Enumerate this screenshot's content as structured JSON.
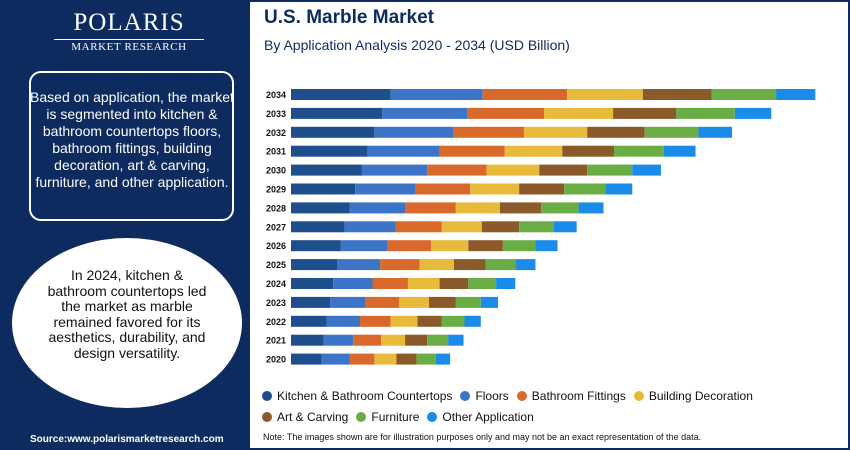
{
  "brand": {
    "name": "POLARIS",
    "tagline": "MARKET RESEARCH"
  },
  "title": "U.S. Marble Market",
  "subtitle": "By Application Analysis 2020 - 2034 (USD Billion)",
  "info_text": "Based on application, the market is segmented into kitchen & bathroom countertops floors, bathroom fittings, building decoration, art & carving, furniture, and other application.",
  "highlight_text": "In 2024, kitchen & bathroom countertops led the market as marble remained favored for its aesthetics, durability, and design versatility.",
  "source": "Source:www.polarismarketresearch.com",
  "note": "Note: The images shown are for illustration purposes only and may not be an exact representation of the data.",
  "chart_data": {
    "type": "bar",
    "orientation": "horizontal",
    "stacked": true,
    "title": "U.S. Marble Market",
    "xlim": [
      0,
      5.8
    ],
    "categories": [
      "2034",
      "2033",
      "2032",
      "2031",
      "2030",
      "2029",
      "2028",
      "2027",
      "2026",
      "2025",
      "2024",
      "2023",
      "2022",
      "2021",
      "2020"
    ],
    "series": [
      {
        "name": "Kitchen & Bathroom Countertops",
        "color": "#1f4e8c",
        "values": [
          1.04,
          0.95,
          0.87,
          0.8,
          0.74,
          0.67,
          0.61,
          0.56,
          0.52,
          0.48,
          0.44,
          0.41,
          0.37,
          0.34,
          0.32
        ]
      },
      {
        "name": "Floors",
        "color": "#3c74c8",
        "values": [
          0.96,
          0.89,
          0.82,
          0.75,
          0.68,
          0.63,
          0.58,
          0.53,
          0.49,
          0.45,
          0.41,
          0.37,
          0.35,
          0.31,
          0.29
        ]
      },
      {
        "name": "Bathroom Fittings",
        "color": "#d9692a",
        "values": [
          0.88,
          0.8,
          0.74,
          0.68,
          0.62,
          0.57,
          0.53,
          0.48,
          0.45,
          0.41,
          0.37,
          0.35,
          0.32,
          0.29,
          0.26
        ]
      },
      {
        "name": "Building Decoration",
        "color": "#e8ba3c",
        "values": [
          0.79,
          0.72,
          0.66,
          0.6,
          0.55,
          0.51,
          0.46,
          0.42,
          0.39,
          0.36,
          0.33,
          0.31,
          0.28,
          0.25,
          0.23
        ]
      },
      {
        "name": "Art & Carving",
        "color": "#8b5a2b",
        "values": [
          0.72,
          0.66,
          0.6,
          0.54,
          0.5,
          0.47,
          0.43,
          0.39,
          0.36,
          0.33,
          0.3,
          0.28,
          0.25,
          0.23,
          0.21
        ]
      },
      {
        "name": "Furniture",
        "color": "#6aad45",
        "values": [
          0.67,
          0.61,
          0.56,
          0.52,
          0.47,
          0.43,
          0.39,
          0.36,
          0.34,
          0.31,
          0.29,
          0.26,
          0.24,
          0.22,
          0.2
        ]
      },
      {
        "name": "Other Application",
        "color": "#1a8be8",
        "values": [
          0.41,
          0.38,
          0.35,
          0.33,
          0.3,
          0.28,
          0.26,
          0.24,
          0.23,
          0.21,
          0.2,
          0.18,
          0.17,
          0.16,
          0.15
        ]
      }
    ]
  }
}
